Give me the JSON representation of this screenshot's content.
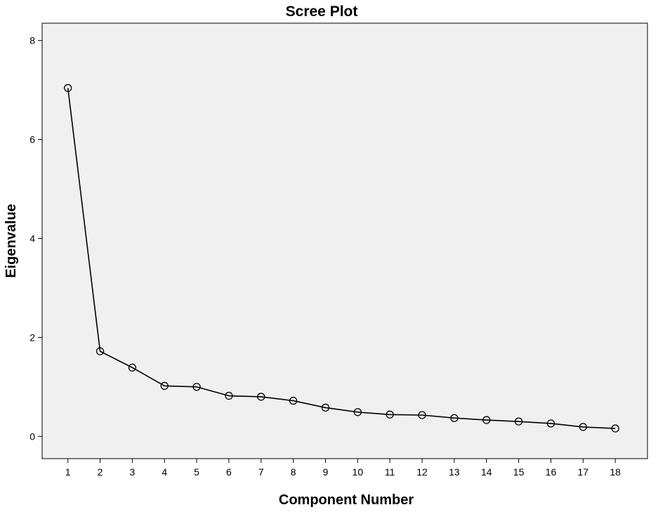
{
  "chart_data": {
    "type": "line",
    "title": "Scree Plot",
    "xlabel": "Component Number",
    "ylabel": "Eigenvalue",
    "x": [
      1,
      2,
      3,
      4,
      5,
      6,
      7,
      8,
      9,
      10,
      11,
      12,
      13,
      14,
      15,
      16,
      17,
      18
    ],
    "series": [
      {
        "values": [
          7.04,
          1.72,
          1.39,
          1.02,
          1.0,
          0.82,
          0.8,
          0.72,
          0.58,
          0.49,
          0.44,
          0.43,
          0.37,
          0.33,
          0.3,
          0.26,
          0.19,
          0.16
        ]
      }
    ],
    "xlim": [
      0.2,
      19.0
    ],
    "ylim": [
      -0.45,
      8.35
    ],
    "x_ticks": [
      "1",
      "2",
      "3",
      "4",
      "5",
      "6",
      "7",
      "8",
      "9",
      "10",
      "11",
      "12",
      "13",
      "14",
      "15",
      "16",
      "17",
      "18"
    ],
    "y_ticks": [
      "0",
      "2",
      "4",
      "6",
      "8"
    ],
    "grid": false,
    "legend": "none",
    "colors": {
      "plot_background": "#f0f0f0",
      "line": "#000000",
      "marker_stroke": "#000000"
    }
  }
}
